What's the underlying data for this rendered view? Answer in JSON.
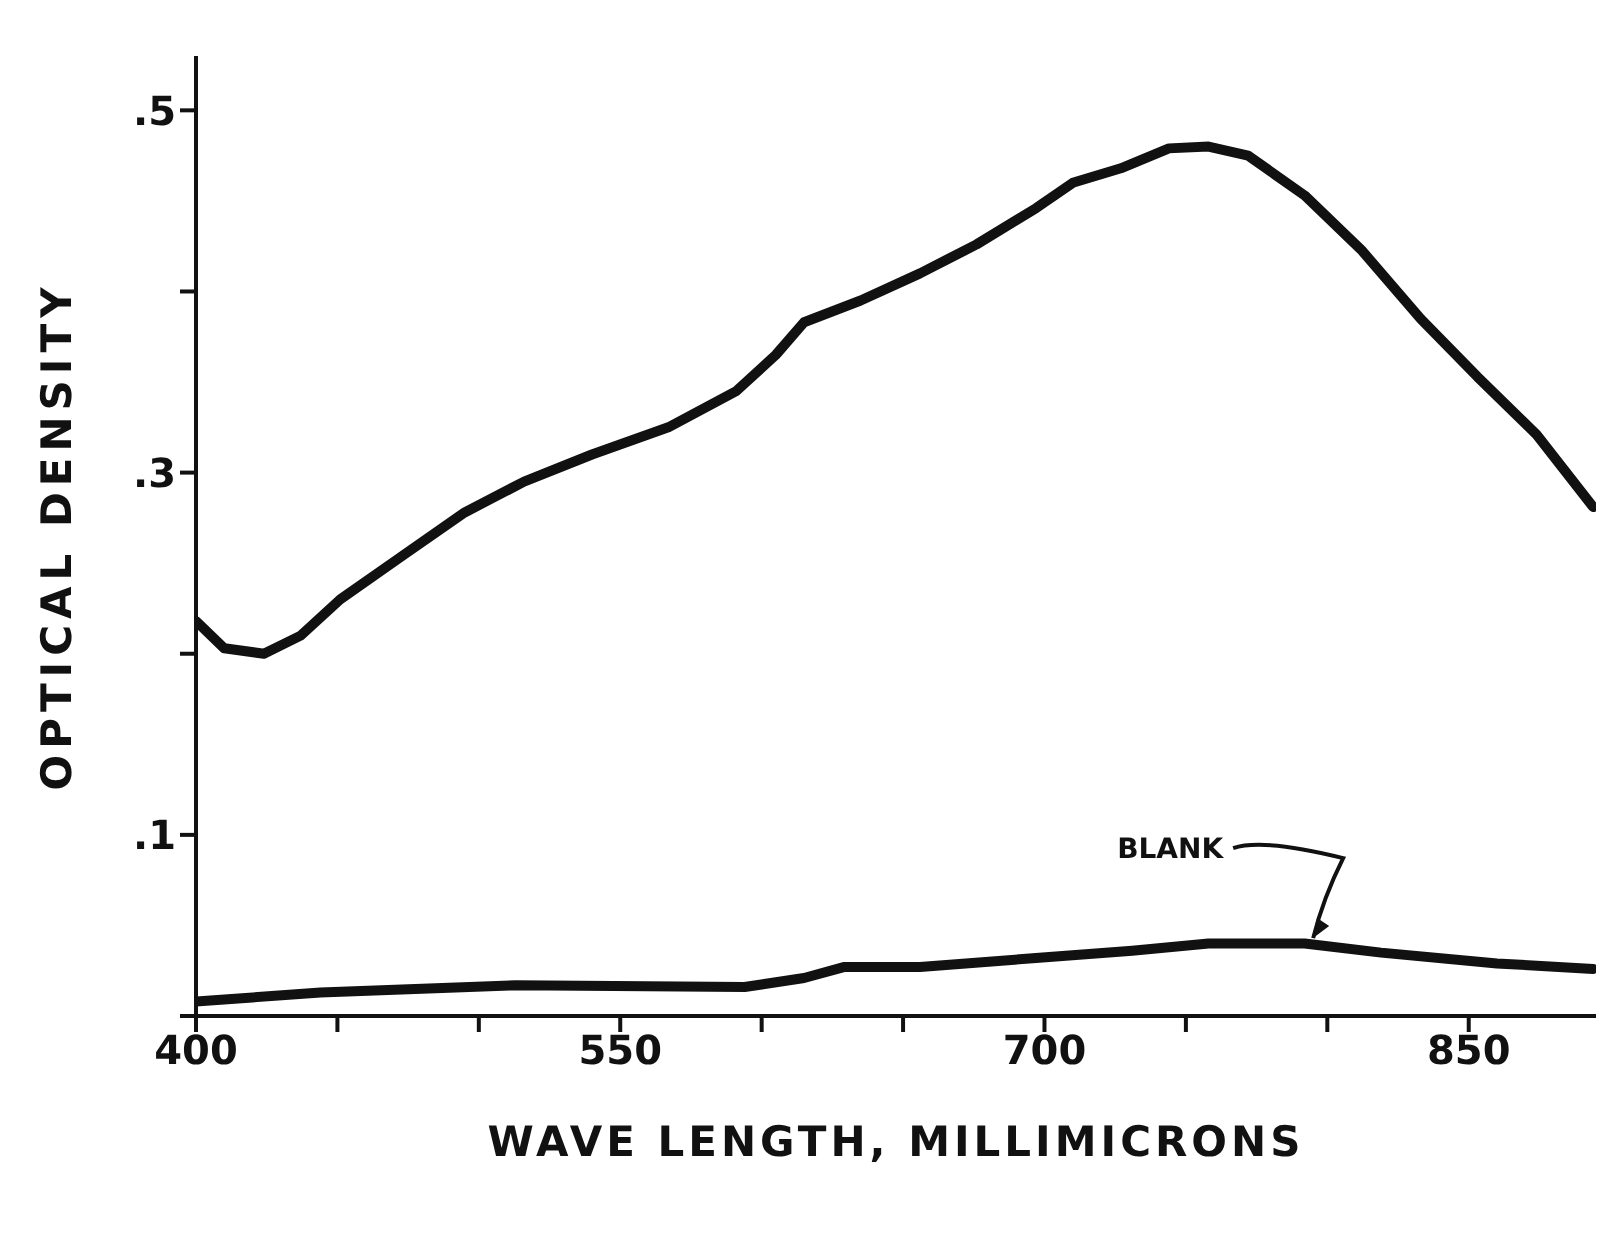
{
  "chart_data": {
    "type": "line",
    "xlabel": "WAVE LENGTH, MILLIMICRONS",
    "ylabel": "OPTICAL DENSITY",
    "xlim": [
      400,
      895
    ],
    "xticks": [
      400,
      {
        "value": 450,
        "label": null
      },
      {
        "value": 500,
        "label": null
      },
      550,
      {
        "value": 600,
        "label": null
      },
      {
        "value": 650,
        "label": null
      },
      700,
      {
        "value": 750,
        "label": null
      },
      {
        "value": 800,
        "label": null
      },
      850
    ],
    "ylim": [
      0,
      0.53
    ],
    "yticks": [
      {
        "value": 0,
        "label": null
      },
      {
        "value": 0.1,
        "label": ".1"
      },
      {
        "value": 0.2,
        "label": null
      },
      {
        "value": 0.3,
        "label": ".3"
      },
      {
        "value": 0.4,
        "label": null
      },
      {
        "value": 0.5,
        "label": ".5"
      }
    ],
    "marker": "none",
    "line_style": "solid",
    "series": [
      {
        "color": "#111111",
        "x": [
          400,
          410,
          424,
          437,
          451,
          472,
          495,
          516,
          540,
          567,
          591,
          605,
          615,
          635,
          656,
          676,
          697,
          710,
          727,
          744,
          758,
          772,
          792,
          812,
          833,
          853,
          874,
          894
        ],
        "values": [
          0.218,
          0.203,
          0.2,
          0.21,
          0.23,
          0.253,
          0.278,
          0.295,
          0.31,
          0.325,
          0.345,
          0.365,
          0.383,
          0.395,
          0.41,
          0.426,
          0.446,
          0.46,
          0.468,
          0.479,
          0.48,
          0.475,
          0.453,
          0.423,
          0.385,
          0.353,
          0.321,
          0.281
        ]
      },
      {
        "color": "#111111",
        "x": [
          400,
          444,
          513,
          594,
          615,
          629,
          656,
          697,
          731,
          758,
          792,
          819,
          860,
          894
        ],
        "values": [
          0.008,
          0.013,
          0.017,
          0.016,
          0.021,
          0.027,
          0.027,
          0.032,
          0.036,
          0.04,
          0.04,
          0.035,
          0.029,
          0.026
        ]
      }
    ],
    "annotations": [
      {
        "text": "BLANK",
        "x": 795,
        "y": 0.043
      }
    ]
  }
}
